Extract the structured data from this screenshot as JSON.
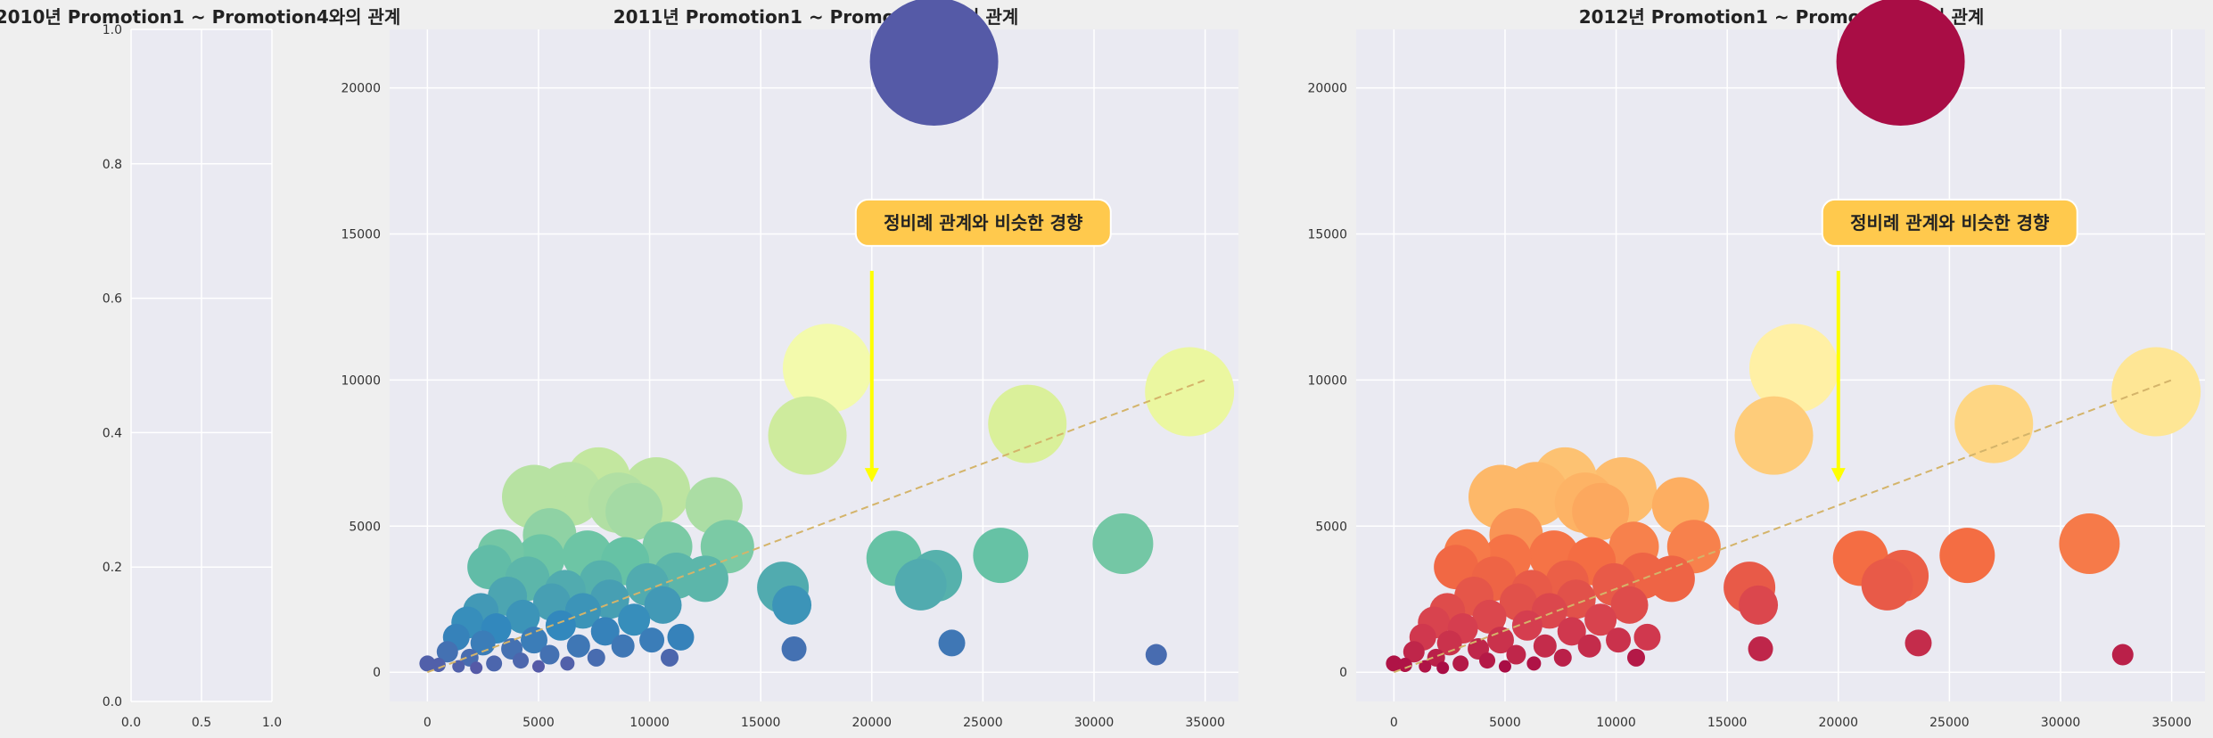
{
  "colors": {
    "background": "#efefef",
    "axes_bg": "#eaeaf2",
    "grid": "#ffffff",
    "trend": "#d4b46a",
    "callout_fill": "#ffc94d",
    "arrow": "#ffff00"
  },
  "chart_data": [
    {
      "type": "scatter",
      "title": "2010년 Promotion1 ~ Promotion4와의 관계",
      "xlim": [
        0,
        1
      ],
      "ylim": [
        0,
        1
      ],
      "xticks": [
        "0.0",
        "0.5",
        "1.0"
      ],
      "yticks": [
        "0.0",
        "0.2",
        "0.4",
        "0.6",
        "0.8",
        "1.0"
      ],
      "grid": true,
      "points": []
    },
    {
      "type": "scatter",
      "title": "2011년 Promotion1 ~ Promotion4와의 관계",
      "xlim": [
        -1700,
        36500
      ],
      "ylim": [
        -1000,
        22000
      ],
      "xticks": [
        "0",
        "5000",
        "10000",
        "15000",
        "20000",
        "25000",
        "30000",
        "35000"
      ],
      "yticks": [
        "0",
        "5000",
        "10000",
        "15000",
        "20000"
      ],
      "grid": true,
      "colormap": "Spectral_r",
      "trend": {
        "x": [
          0,
          35000
        ],
        "y": [
          0,
          10000
        ]
      },
      "annotation": {
        "text": "정비례 관계와 비슷한 경향",
        "x": 20000,
        "y": 15200,
        "arrow_to": [
          20000,
          6500
        ]
      }
    },
    {
      "type": "scatter",
      "title": "2012년 Promotion1 ~ Promotion4와의 관계",
      "xlim": [
        -1700,
        36500
      ],
      "ylim": [
        -1000,
        22000
      ],
      "xticks": [
        "0",
        "5000",
        "10000",
        "15000",
        "20000",
        "25000",
        "30000",
        "35000"
      ],
      "yticks": [
        "0",
        "5000",
        "10000",
        "15000",
        "20000"
      ],
      "grid": true,
      "colormap": "Spectral",
      "trend": {
        "x": [
          0,
          35000
        ],
        "y": [
          0,
          10000
        ]
      },
      "annotation": {
        "text": "정비례 관계와 비슷한 경향",
        "x": 20000,
        "y": 15200,
        "arrow_to": [
          20000,
          6500
        ]
      }
    }
  ],
  "scatter_points": [
    {
      "x": 22800,
      "y": 20900,
      "r": 72,
      "c": 0.98
    },
    {
      "x": 18000,
      "y": 10400,
      "r": 50,
      "c": 0.55
    },
    {
      "x": 34300,
      "y": 9600,
      "r": 50,
      "c": 0.58
    },
    {
      "x": 27000,
      "y": 8500,
      "r": 44,
      "c": 0.62
    },
    {
      "x": 17100,
      "y": 8100,
      "r": 44,
      "c": 0.64
    },
    {
      "x": 31300,
      "y": 4400,
      "r": 34,
      "c": 0.78
    },
    {
      "x": 25800,
      "y": 4000,
      "r": 31,
      "c": 0.8
    },
    {
      "x": 21000,
      "y": 3900,
      "r": 31,
      "c": 0.8
    },
    {
      "x": 22900,
      "y": 3300,
      "r": 29,
      "c": 0.83
    },
    {
      "x": 22200,
      "y": 3000,
      "r": 29,
      "c": 0.84
    },
    {
      "x": 16000,
      "y": 2900,
      "r": 29,
      "c": 0.84
    },
    {
      "x": 16400,
      "y": 2300,
      "r": 22,
      "c": 0.88
    },
    {
      "x": 23600,
      "y": 1000,
      "r": 15,
      "c": 0.93
    },
    {
      "x": 16500,
      "y": 800,
      "r": 14,
      "c": 0.94
    },
    {
      "x": 32800,
      "y": 600,
      "r": 12,
      "c": 0.95
    },
    {
      "x": 10900,
      "y": 500,
      "r": 10,
      "c": 0.96
    },
    {
      "x": 7700,
      "y": 6600,
      "r": 36,
      "c": 0.66
    },
    {
      "x": 10300,
      "y": 6200,
      "r": 38,
      "c": 0.67
    },
    {
      "x": 6400,
      "y": 6100,
      "r": 36,
      "c": 0.68
    },
    {
      "x": 4800,
      "y": 6000,
      "r": 36,
      "c": 0.68
    },
    {
      "x": 8600,
      "y": 5800,
      "r": 34,
      "c": 0.69
    },
    {
      "x": 12900,
      "y": 5700,
      "r": 32,
      "c": 0.7
    },
    {
      "x": 9300,
      "y": 5500,
      "r": 32,
      "c": 0.71
    },
    {
      "x": 5500,
      "y": 4700,
      "r": 30,
      "c": 0.74
    },
    {
      "x": 13500,
      "y": 4300,
      "r": 30,
      "c": 0.77
    },
    {
      "x": 3300,
      "y": 4100,
      "r": 26,
      "c": 0.78
    },
    {
      "x": 10800,
      "y": 4300,
      "r": 28,
      "c": 0.77
    },
    {
      "x": 7200,
      "y": 4000,
      "r": 28,
      "c": 0.79
    },
    {
      "x": 5100,
      "y": 3900,
      "r": 27,
      "c": 0.79
    },
    {
      "x": 8900,
      "y": 3800,
      "r": 27,
      "c": 0.8
    },
    {
      "x": 2800,
      "y": 3600,
      "r": 25,
      "c": 0.81
    },
    {
      "x": 12500,
      "y": 3200,
      "r": 26,
      "c": 0.82
    },
    {
      "x": 11200,
      "y": 3300,
      "r": 26,
      "c": 0.82
    },
    {
      "x": 4500,
      "y": 3200,
      "r": 25,
      "c": 0.82
    },
    {
      "x": 7800,
      "y": 3100,
      "r": 24,
      "c": 0.83
    },
    {
      "x": 9900,
      "y": 3000,
      "r": 24,
      "c": 0.84
    },
    {
      "x": 6200,
      "y": 2800,
      "r": 23,
      "c": 0.84
    },
    {
      "x": 3600,
      "y": 2600,
      "r": 22,
      "c": 0.85
    },
    {
      "x": 8200,
      "y": 2500,
      "r": 22,
      "c": 0.86
    },
    {
      "x": 5600,
      "y": 2400,
      "r": 21,
      "c": 0.86
    },
    {
      "x": 10600,
      "y": 2300,
      "r": 21,
      "c": 0.87
    },
    {
      "x": 2400,
      "y": 2100,
      "r": 20,
      "c": 0.87
    },
    {
      "x": 7000,
      "y": 2100,
      "r": 20,
      "c": 0.88
    },
    {
      "x": 4300,
      "y": 1900,
      "r": 19,
      "c": 0.88
    },
    {
      "x": 9300,
      "y": 1800,
      "r": 18,
      "c": 0.89
    },
    {
      "x": 1800,
      "y": 1700,
      "r": 18,
      "c": 0.89
    },
    {
      "x": 6000,
      "y": 1600,
      "r": 17,
      "c": 0.9
    },
    {
      "x": 3100,
      "y": 1500,
      "r": 17,
      "c": 0.9
    },
    {
      "x": 8000,
      "y": 1400,
      "r": 16,
      "c": 0.91
    },
    {
      "x": 11400,
      "y": 1200,
      "r": 15,
      "c": 0.91
    },
    {
      "x": 1300,
      "y": 1200,
      "r": 15,
      "c": 0.91
    },
    {
      "x": 4800,
      "y": 1100,
      "r": 15,
      "c": 0.92
    },
    {
      "x": 10100,
      "y": 1100,
      "r": 14,
      "c": 0.92
    },
    {
      "x": 2500,
      "y": 1000,
      "r": 14,
      "c": 0.92
    },
    {
      "x": 6800,
      "y": 900,
      "r": 13,
      "c": 0.93
    },
    {
      "x": 8800,
      "y": 900,
      "r": 13,
      "c": 0.93
    },
    {
      "x": 3800,
      "y": 800,
      "r": 12,
      "c": 0.94
    },
    {
      "x": 900,
      "y": 700,
      "r": 12,
      "c": 0.94
    },
    {
      "x": 5500,
      "y": 600,
      "r": 11,
      "c": 0.94
    },
    {
      "x": 7600,
      "y": 500,
      "r": 10,
      "c": 0.95
    },
    {
      "x": 1900,
      "y": 500,
      "r": 10,
      "c": 0.95
    },
    {
      "x": 4200,
      "y": 400,
      "r": 9,
      "c": 0.96
    },
    {
      "x": 3000,
      "y": 300,
      "r": 9,
      "c": 0.96
    },
    {
      "x": 6300,
      "y": 300,
      "r": 8,
      "c": 0.97
    },
    {
      "x": 500,
      "y": 250,
      "r": 8,
      "c": 0.97
    },
    {
      "x": 1400,
      "y": 200,
      "r": 7,
      "c": 0.97
    },
    {
      "x": 2200,
      "y": 150,
      "r": 7,
      "c": 0.98
    },
    {
      "x": 5000,
      "y": 200,
      "r": 7,
      "c": 0.98
    },
    {
      "x": 0,
      "y": 300,
      "r": 9,
      "c": 0.97
    }
  ]
}
